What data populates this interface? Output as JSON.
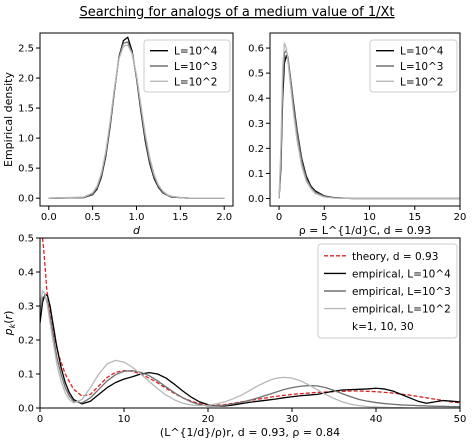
{
  "figure": {
    "title": "Searching for analogs of a medium value of 1/Xt"
  },
  "chart_data": [
    {
      "type": "line",
      "panel": "top-left",
      "xlabel": "d",
      "ylabel": "Empirical density",
      "xlim": [
        -0.1,
        2.1
      ],
      "ylim": [
        -0.13,
        2.75
      ],
      "xticks": [
        0.0,
        0.5,
        1.0,
        1.5,
        2.0
      ],
      "xtick_labels": [
        "0.0",
        "0.5",
        "1.0",
        "1.5",
        "2.0"
      ],
      "yticks": [
        0.0,
        0.5,
        1.0,
        1.5,
        2.0,
        2.5
      ],
      "ytick_labels": [
        "0.0",
        "0.5",
        "1.0",
        "1.5",
        "2.0",
        "2.5"
      ],
      "legend_position": "top-right",
      "series": [
        {
          "name": "L=10^4",
          "color": "#000000",
          "x": [
            0.0,
            0.4,
            0.5,
            0.55,
            0.6,
            0.65,
            0.7,
            0.75,
            0.8,
            0.85,
            0.9,
            0.95,
            1.0,
            1.05,
            1.1,
            1.15,
            1.2,
            1.25,
            1.3,
            1.35,
            1.4,
            1.5,
            1.6,
            2.0
          ],
          "y": [
            0.0,
            0.01,
            0.06,
            0.15,
            0.35,
            0.7,
            1.2,
            1.8,
            2.35,
            2.62,
            2.68,
            2.45,
            2.0,
            1.45,
            0.95,
            0.58,
            0.33,
            0.18,
            0.09,
            0.05,
            0.02,
            0.01,
            0.0,
            0.0
          ]
        },
        {
          "name": "L=10^3",
          "color": "#707070",
          "x": [
            0.0,
            0.4,
            0.5,
            0.55,
            0.6,
            0.65,
            0.7,
            0.75,
            0.8,
            0.85,
            0.9,
            0.95,
            1.0,
            1.05,
            1.1,
            1.15,
            1.2,
            1.25,
            1.3,
            1.35,
            1.4,
            1.5,
            1.6,
            2.0
          ],
          "y": [
            0.0,
            0.01,
            0.07,
            0.17,
            0.38,
            0.74,
            1.24,
            1.82,
            2.33,
            2.58,
            2.6,
            2.42,
            2.02,
            1.5,
            1.0,
            0.62,
            0.36,
            0.2,
            0.1,
            0.05,
            0.03,
            0.01,
            0.0,
            0.0
          ]
        },
        {
          "name": "L=10^2",
          "color": "#b8b8b8",
          "x": [
            0.0,
            0.4,
            0.5,
            0.55,
            0.6,
            0.65,
            0.7,
            0.75,
            0.8,
            0.85,
            0.9,
            0.95,
            1.0,
            1.05,
            1.1,
            1.15,
            1.2,
            1.25,
            1.3,
            1.35,
            1.4,
            1.5,
            1.6,
            2.0
          ],
          "y": [
            0.0,
            0.02,
            0.09,
            0.2,
            0.42,
            0.78,
            1.28,
            1.85,
            2.32,
            2.53,
            2.55,
            2.4,
            2.05,
            1.55,
            1.07,
            0.68,
            0.4,
            0.22,
            0.12,
            0.06,
            0.03,
            0.01,
            0.0,
            0.0
          ]
        }
      ]
    },
    {
      "type": "line",
      "panel": "top-right",
      "xlabel": "ρ = L^{1/d}C, d = 0.93",
      "ylabel": "",
      "xlim": [
        -1,
        20
      ],
      "ylim": [
        -0.03,
        0.66
      ],
      "xticks": [
        0,
        5,
        10,
        15,
        20
      ],
      "xtick_labels": [
        "0",
        "5",
        "10",
        "15",
        "20"
      ],
      "yticks": [
        0.0,
        0.1,
        0.2,
        0.3,
        0.4,
        0.5,
        0.6
      ],
      "ytick_labels": [
        "0.0",
        "0.1",
        "0.2",
        "0.3",
        "0.4",
        "0.5",
        "0.6"
      ],
      "legend_position": "top-right",
      "series": [
        {
          "name": "L=10^4",
          "color": "#000000",
          "x": [
            0,
            0.2,
            0.4,
            0.6,
            0.8,
            1.0,
            1.3,
            1.6,
            2.0,
            2.5,
            3.0,
            3.5,
            4.0,
            5.0,
            6.0,
            8.0,
            20.0
          ],
          "y": [
            0.0,
            0.12,
            0.4,
            0.54,
            0.57,
            0.55,
            0.47,
            0.38,
            0.27,
            0.16,
            0.09,
            0.05,
            0.03,
            0.01,
            0.004,
            0.0,
            0.0
          ]
        },
        {
          "name": "L=10^3",
          "color": "#707070",
          "x": [
            0,
            0.2,
            0.4,
            0.6,
            0.8,
            1.0,
            1.3,
            1.6,
            2.0,
            2.5,
            3.0,
            3.5,
            4.0,
            5.0,
            6.0,
            8.0,
            20.0
          ],
          "y": [
            0.0,
            0.15,
            0.45,
            0.58,
            0.59,
            0.56,
            0.47,
            0.37,
            0.26,
            0.15,
            0.08,
            0.045,
            0.025,
            0.008,
            0.003,
            0.0,
            0.0
          ]
        },
        {
          "name": "L=10^2",
          "color": "#b8b8b8",
          "x": [
            0,
            0.2,
            0.4,
            0.6,
            0.8,
            1.0,
            1.3,
            1.6,
            2.0,
            2.5,
            3.0,
            3.5,
            4.0,
            5.0,
            6.0,
            8.0,
            20.0
          ],
          "y": [
            0.0,
            0.2,
            0.52,
            0.62,
            0.6,
            0.54,
            0.44,
            0.34,
            0.23,
            0.13,
            0.07,
            0.04,
            0.02,
            0.006,
            0.002,
            0.0,
            0.0
          ]
        }
      ]
    },
    {
      "type": "line",
      "panel": "bottom",
      "xlabel": "(L^{1/d}/ρ)r, d = 0.93, ρ = 0.84",
      "ylabel": "p_k(r)",
      "xlim": [
        0,
        50
      ],
      "ylim": [
        0,
        0.5
      ],
      "xticks": [
        0,
        10,
        20,
        30,
        40,
        50
      ],
      "xtick_labels": [
        "0",
        "10",
        "20",
        "30",
        "40",
        "50"
      ],
      "yticks": [
        0.0,
        0.1,
        0.2,
        0.3,
        0.4,
        0.5
      ],
      "ytick_labels": [
        "0.0",
        "0.1",
        "0.2",
        "0.3",
        "0.4",
        "0.5"
      ],
      "legend_position": "top-right",
      "annotation": "k=1, 10, 30",
      "series": [
        {
          "name": "theory, d = 0.93",
          "color": "#e02020",
          "dashed": true,
          "x": [
            0.3,
            0.5,
            0.8,
            1.2,
            1.7,
            2.3,
            3,
            4,
            5,
            6,
            7,
            8,
            9,
            10,
            11,
            12,
            13,
            14,
            15,
            16,
            17,
            18,
            19,
            20,
            21,
            22,
            23,
            24,
            25,
            26,
            27,
            28,
            29,
            30,
            31,
            32,
            33,
            34,
            35,
            36,
            37,
            38,
            39,
            40,
            41,
            42,
            43,
            44,
            45,
            46,
            47,
            48,
            49,
            50
          ],
          "y": [
            0.5,
            0.45,
            0.35,
            0.28,
            0.21,
            0.15,
            0.1,
            0.055,
            0.035,
            0.04,
            0.065,
            0.09,
            0.105,
            0.11,
            0.108,
            0.1,
            0.088,
            0.074,
            0.058,
            0.043,
            0.03,
            0.02,
            0.013,
            0.009,
            0.008,
            0.01,
            0.014,
            0.018,
            0.022,
            0.026,
            0.03,
            0.034,
            0.037,
            0.04,
            0.042,
            0.044,
            0.046,
            0.047,
            0.048,
            0.049,
            0.05,
            0.05,
            0.049,
            0.048,
            0.046,
            0.044,
            0.041,
            0.038,
            0.034,
            0.03,
            0.026,
            0.022,
            0.018,
            0.015
          ]
        },
        {
          "name": "empirical, L=10^4",
          "color": "#000000",
          "x": [
            0,
            0.3,
            0.6,
            0.9,
            1.2,
            1.6,
            2,
            2.5,
            3,
            3.5,
            4,
            5,
            6,
            7,
            8,
            9,
            10,
            11,
            12,
            13,
            14,
            15,
            16,
            17,
            18,
            19,
            20,
            21,
            22,
            23,
            24,
            25,
            26,
            27,
            28,
            29,
            30,
            31,
            32,
            33,
            34,
            35,
            36,
            37,
            38,
            39,
            40,
            41,
            42,
            43,
            44,
            45,
            46,
            47,
            48,
            49,
            50
          ],
          "y": [
            0.25,
            0.31,
            0.335,
            0.33,
            0.3,
            0.24,
            0.18,
            0.12,
            0.075,
            0.045,
            0.025,
            0.012,
            0.02,
            0.04,
            0.06,
            0.075,
            0.085,
            0.092,
            0.1,
            0.104,
            0.1,
            0.088,
            0.07,
            0.05,
            0.032,
            0.018,
            0.01,
            0.006,
            0.006,
            0.009,
            0.013,
            0.017,
            0.02,
            0.023,
            0.026,
            0.03,
            0.033,
            0.036,
            0.038,
            0.04,
            0.045,
            0.05,
            0.053,
            0.054,
            0.055,
            0.056,
            0.058,
            0.056,
            0.05,
            0.04,
            0.03,
            0.02,
            0.014,
            0.018,
            0.022,
            0.02,
            0.018
          ]
        },
        {
          "name": "empirical, L=10^3",
          "color": "#707070",
          "x": [
            0,
            0.3,
            0.6,
            0.9,
            1.2,
            1.6,
            2,
            2.5,
            3,
            3.5,
            4,
            5,
            6,
            7,
            8,
            9,
            10,
            11,
            12,
            13,
            14,
            15,
            16,
            17,
            18,
            19,
            20,
            21,
            22,
            23,
            24,
            25,
            26,
            27,
            28,
            29,
            30,
            31,
            32,
            33,
            34,
            35,
            36,
            37,
            38,
            39,
            40,
            41,
            42,
            43,
            44,
            45,
            46,
            47,
            48,
            49,
            50
          ],
          "y": [
            0.28,
            0.325,
            0.33,
            0.31,
            0.27,
            0.21,
            0.15,
            0.1,
            0.06,
            0.035,
            0.02,
            0.015,
            0.03,
            0.055,
            0.08,
            0.098,
            0.108,
            0.11,
            0.105,
            0.095,
            0.08,
            0.062,
            0.045,
            0.03,
            0.018,
            0.01,
            0.006,
            0.006,
            0.008,
            0.012,
            0.017,
            0.023,
            0.03,
            0.038,
            0.046,
            0.054,
            0.06,
            0.064,
            0.066,
            0.065,
            0.06,
            0.052,
            0.042,
            0.033,
            0.025,
            0.02,
            0.016,
            0.013,
            0.011,
            0.009,
            0.008,
            0.007,
            0.006,
            0.005,
            0.005,
            0.004,
            0.004
          ]
        },
        {
          "name": "empirical, L=10^2",
          "color": "#b8b8b8",
          "x": [
            0,
            0.3,
            0.6,
            0.9,
            1.2,
            1.6,
            2,
            2.5,
            3,
            3.5,
            4,
            5,
            6,
            7,
            8,
            9,
            10,
            11,
            12,
            13,
            14,
            15,
            16,
            17,
            18,
            19,
            20,
            21,
            22,
            23,
            24,
            25,
            26,
            27,
            28,
            29,
            30,
            31,
            32,
            33,
            34,
            35,
            36,
            37,
            38,
            39,
            40,
            41,
            42,
            43,
            44,
            45,
            46,
            47,
            48,
            49,
            50
          ],
          "y": [
            0.3,
            0.345,
            0.335,
            0.3,
            0.25,
            0.19,
            0.13,
            0.08,
            0.045,
            0.025,
            0.015,
            0.025,
            0.06,
            0.1,
            0.13,
            0.14,
            0.135,
            0.12,
            0.1,
            0.078,
            0.057,
            0.038,
            0.024,
            0.014,
            0.009,
            0.007,
            0.008,
            0.012,
            0.018,
            0.027,
            0.038,
            0.052,
            0.066,
            0.078,
            0.087,
            0.09,
            0.088,
            0.08,
            0.068,
            0.054,
            0.04,
            0.028,
            0.018,
            0.011,
            0.007,
            0.004,
            0.003,
            0.002,
            0.001,
            0.001,
            0.0,
            0.0,
            0.0,
            0.0,
            0.0,
            0.0,
            0.0
          ]
        }
      ]
    }
  ]
}
